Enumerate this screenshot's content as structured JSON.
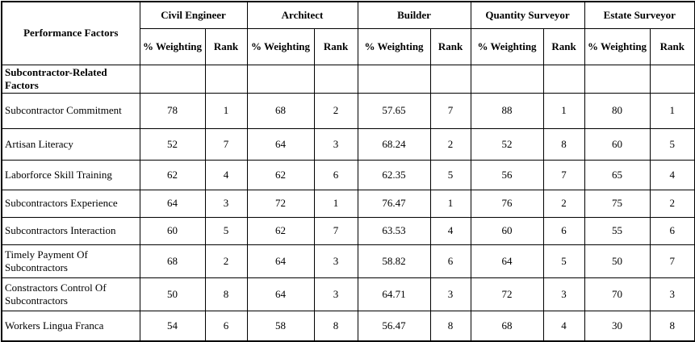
{
  "table": {
    "row_header": "Performance Factors",
    "groups": [
      {
        "label": "Civil Engineer"
      },
      {
        "label": "Architect"
      },
      {
        "label": "Builder"
      },
      {
        "label": "Quantity Surveyor"
      },
      {
        "label": "Estate Surveyor"
      }
    ],
    "sub_headers": {
      "weighting": "% Weighting",
      "rank": "Rank"
    },
    "section_label": "Subcontractor-Related Factors",
    "rows": [
      {
        "factor": "Subcontractor Commitment",
        "values": [
          "78",
          "1",
          "68",
          "2",
          "57.65",
          "7",
          "88",
          "1",
          "80",
          "1"
        ]
      },
      {
        "factor": "Artisan Literacy",
        "values": [
          "52",
          "7",
          "64",
          "3",
          "68.24",
          "2",
          "52",
          "8",
          "60",
          "5"
        ]
      },
      {
        "factor": "Laborforce Skill Training",
        "values": [
          "62",
          "4",
          "62",
          "6",
          "62.35",
          "5",
          "56",
          "7",
          "65",
          "4"
        ]
      },
      {
        "factor": "Subcontractors Experience",
        "values": [
          "64",
          "3",
          "72",
          "1",
          "76.47",
          "1",
          "76",
          "2",
          "75",
          "2"
        ]
      },
      {
        "factor": "Subcontractors Interaction",
        "values": [
          "60",
          "5",
          "62",
          "7",
          "63.53",
          "4",
          "60",
          "6",
          "55",
          "6"
        ]
      },
      {
        "factor": "Timely Payment Of Subcontractors",
        "values": [
          "68",
          "2",
          "64",
          "3",
          "58.82",
          "6",
          "64",
          "5",
          "50",
          "7"
        ]
      },
      {
        "factor": "Constractors Control Of Subcontractors",
        "values": [
          "50",
          "8",
          "64",
          "3",
          "64.71",
          "3",
          "72",
          "3",
          "70",
          "3"
        ]
      },
      {
        "factor": "Workers Lingua Franca",
        "values": [
          "54",
          "6",
          "58",
          "8",
          "56.47",
          "8",
          "68",
          "4",
          "30",
          "8"
        ]
      }
    ],
    "colors": {
      "border": "#000000",
      "text": "#000000",
      "background": "#ffffff"
    }
  },
  "chart_data": {
    "type": "table",
    "title": "Performance Factors — Subcontractor-Related Factors",
    "column_groups": [
      "Civil Engineer",
      "Architect",
      "Builder",
      "Quantity Surveyor",
      "Estate Surveyor"
    ],
    "sub_columns": [
      "% Weighting",
      "Rank"
    ],
    "categories": [
      "Subcontractor Commitment",
      "Artisan Literacy",
      "Laborforce Skill Training",
      "Subcontractors Experience",
      "Subcontractors Interaction",
      "Timely Payment Of Subcontractors",
      "Constractors Control Of Subcontractors",
      "Workers Lingua Franca"
    ],
    "series": [
      {
        "name": "Civil Engineer % Weighting",
        "values": [
          78,
          52,
          62,
          64,
          60,
          68,
          50,
          54
        ]
      },
      {
        "name": "Civil Engineer Rank",
        "values": [
          1,
          7,
          4,
          3,
          5,
          2,
          8,
          6
        ]
      },
      {
        "name": "Architect % Weighting",
        "values": [
          68,
          64,
          62,
          72,
          62,
          64,
          64,
          58
        ]
      },
      {
        "name": "Architect Rank",
        "values": [
          2,
          3,
          6,
          1,
          7,
          3,
          3,
          8
        ]
      },
      {
        "name": "Builder % Weighting",
        "values": [
          57.65,
          68.24,
          62.35,
          76.47,
          63.53,
          58.82,
          64.71,
          56.47
        ]
      },
      {
        "name": "Builder Rank",
        "values": [
          7,
          2,
          5,
          1,
          4,
          6,
          3,
          8
        ]
      },
      {
        "name": "Quantity Surveyor % Weighting",
        "values": [
          88,
          52,
          56,
          76,
          60,
          64,
          72,
          68
        ]
      },
      {
        "name": "Quantity Surveyor Rank",
        "values": [
          1,
          8,
          7,
          2,
          6,
          5,
          3,
          4
        ]
      },
      {
        "name": "Estate Surveyor % Weighting",
        "values": [
          80,
          60,
          65,
          75,
          55,
          50,
          70,
          30
        ]
      },
      {
        "name": "Estate Surveyor Rank",
        "values": [
          1,
          5,
          4,
          2,
          6,
          7,
          3,
          8
        ]
      }
    ]
  }
}
